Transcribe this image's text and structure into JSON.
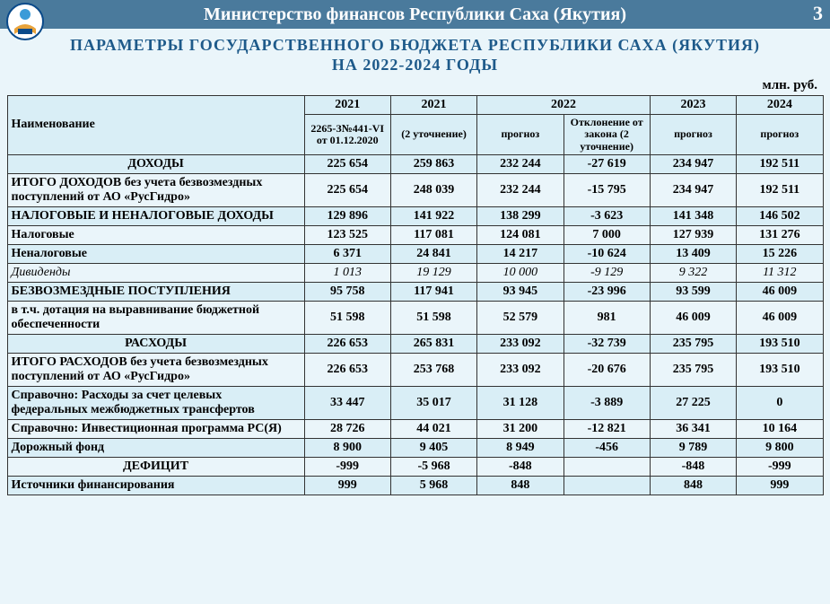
{
  "header": {
    "ministry": "Министерство финансов Республики Саха (Якутия)",
    "page_number": "3"
  },
  "title_line1": "ПАРАМЕТРЫ ГОСУДАРСТВЕННОГО БЮДЖЕТА РЕСПУБЛИКИ САХА (ЯКУТИЯ)",
  "title_line2": "НА 2022-2024 ГОДЫ",
  "unit": "млн. руб.",
  "columns": {
    "name": "Наименование",
    "y2021a": "2021",
    "y2021b": "2021",
    "y2022": "2022",
    "y2023": "2023",
    "y2024": "2024",
    "sub_2021a": "2265-З№441-VI от 01.12.2020",
    "sub_2021b": "(2 уточнение)",
    "sub_2022a": "прогноз",
    "sub_2022b": "Отклонение от закона (2 уточнение)",
    "sub_2023": "прогноз",
    "sub_2024": "прогноз"
  },
  "rows": [
    {
      "style": "section alt",
      "name": "ДОХОДЫ",
      "c": [
        "225 654",
        "259 863",
        "232 244",
        "-27 619",
        "234 947",
        "192 511"
      ]
    },
    {
      "style": "sub-bold plain",
      "name": "ИТОГО ДОХОДОВ без учета безвозмездных поступлений от АО «РусГидро»",
      "c": [
        "225 654",
        "248 039",
        "232 244",
        "-15 795",
        "234 947",
        "192 511"
      ]
    },
    {
      "style": "sub-bold alt",
      "name": "НАЛОГОВЫЕ И НЕНАЛОГОВЫЕ ДОХОДЫ",
      "c": [
        "129 896",
        "141 922",
        "138 299",
        "-3 623",
        "141 348",
        "146 502"
      ]
    },
    {
      "style": "sub-bold plain",
      "name": "Налоговые",
      "c": [
        "123 525",
        "117 081",
        "124 081",
        "7 000",
        "127 939",
        "131 276"
      ]
    },
    {
      "style": "sub-bold alt",
      "name": "Неналоговые",
      "c": [
        "6 371",
        "24 841",
        "14 217",
        "-10 624",
        "13 409",
        "15 226"
      ]
    },
    {
      "style": "italic plain",
      "name": "Дивиденды",
      "c": [
        "1 013",
        "19 129",
        "10 000",
        "-9 129",
        "9 322",
        "11 312"
      ]
    },
    {
      "style": "sub-bold alt",
      "name": "БЕЗВОЗМЕЗДНЫЕ ПОСТУПЛЕНИЯ",
      "c": [
        "95 758",
        "117 941",
        "93 945",
        "-23 996",
        "93 599",
        "46 009"
      ]
    },
    {
      "style": "sub-bold plain",
      "name": "в т.ч. дотация на выравнивание бюджетной обеспеченности",
      "c": [
        "51 598",
        "51 598",
        "52 579",
        "981",
        "46 009",
        "46 009"
      ]
    },
    {
      "style": "section alt",
      "name": "РАСХОДЫ",
      "c": [
        "226 653",
        "265 831",
        "233 092",
        "-32 739",
        "235 795",
        "193 510"
      ]
    },
    {
      "style": "sub-bold plain",
      "name": "ИТОГО РАСХОДОВ без учета безвозмездных поступлений от АО «РусГидро»",
      "c": [
        "226 653",
        "253 768",
        "233 092",
        "-20 676",
        "235 795",
        "193 510"
      ]
    },
    {
      "style": "sub-bold alt",
      "name": "Справочно: Расходы за счет целевых федеральных межбюджетных трансфертов",
      "c": [
        "33 447",
        "35 017",
        "31 128",
        "-3 889",
        "27 225",
        "0"
      ]
    },
    {
      "style": "sub-bold plain",
      "name": "Справочно: Инвестиционная программа РС(Я)",
      "c": [
        "28 726",
        "44 021",
        "31 200",
        "-12 821",
        "36 341",
        "10 164"
      ]
    },
    {
      "style": "sub-bold alt",
      "name": "Дорожный фонд",
      "c": [
        "8 900",
        "9 405",
        "8 949",
        "-456",
        "9 789",
        "9 800"
      ]
    },
    {
      "style": "section plain",
      "name": "ДЕФИЦИТ",
      "c": [
        "-999",
        "-5 968",
        "-848",
        "",
        "-848",
        "-999"
      ]
    },
    {
      "style": "sub-bold alt",
      "name": "Источники финансирования",
      "c": [
        "999",
        "5 968",
        "848",
        "",
        "848",
        "999"
      ]
    }
  ],
  "colors": {
    "header_bg": "#4a7a9c",
    "title_color": "#1e5a8a",
    "cell_alt_bg": "#d9eef6",
    "cell_plain_bg": "#eaf5fa",
    "border": "#333333"
  }
}
